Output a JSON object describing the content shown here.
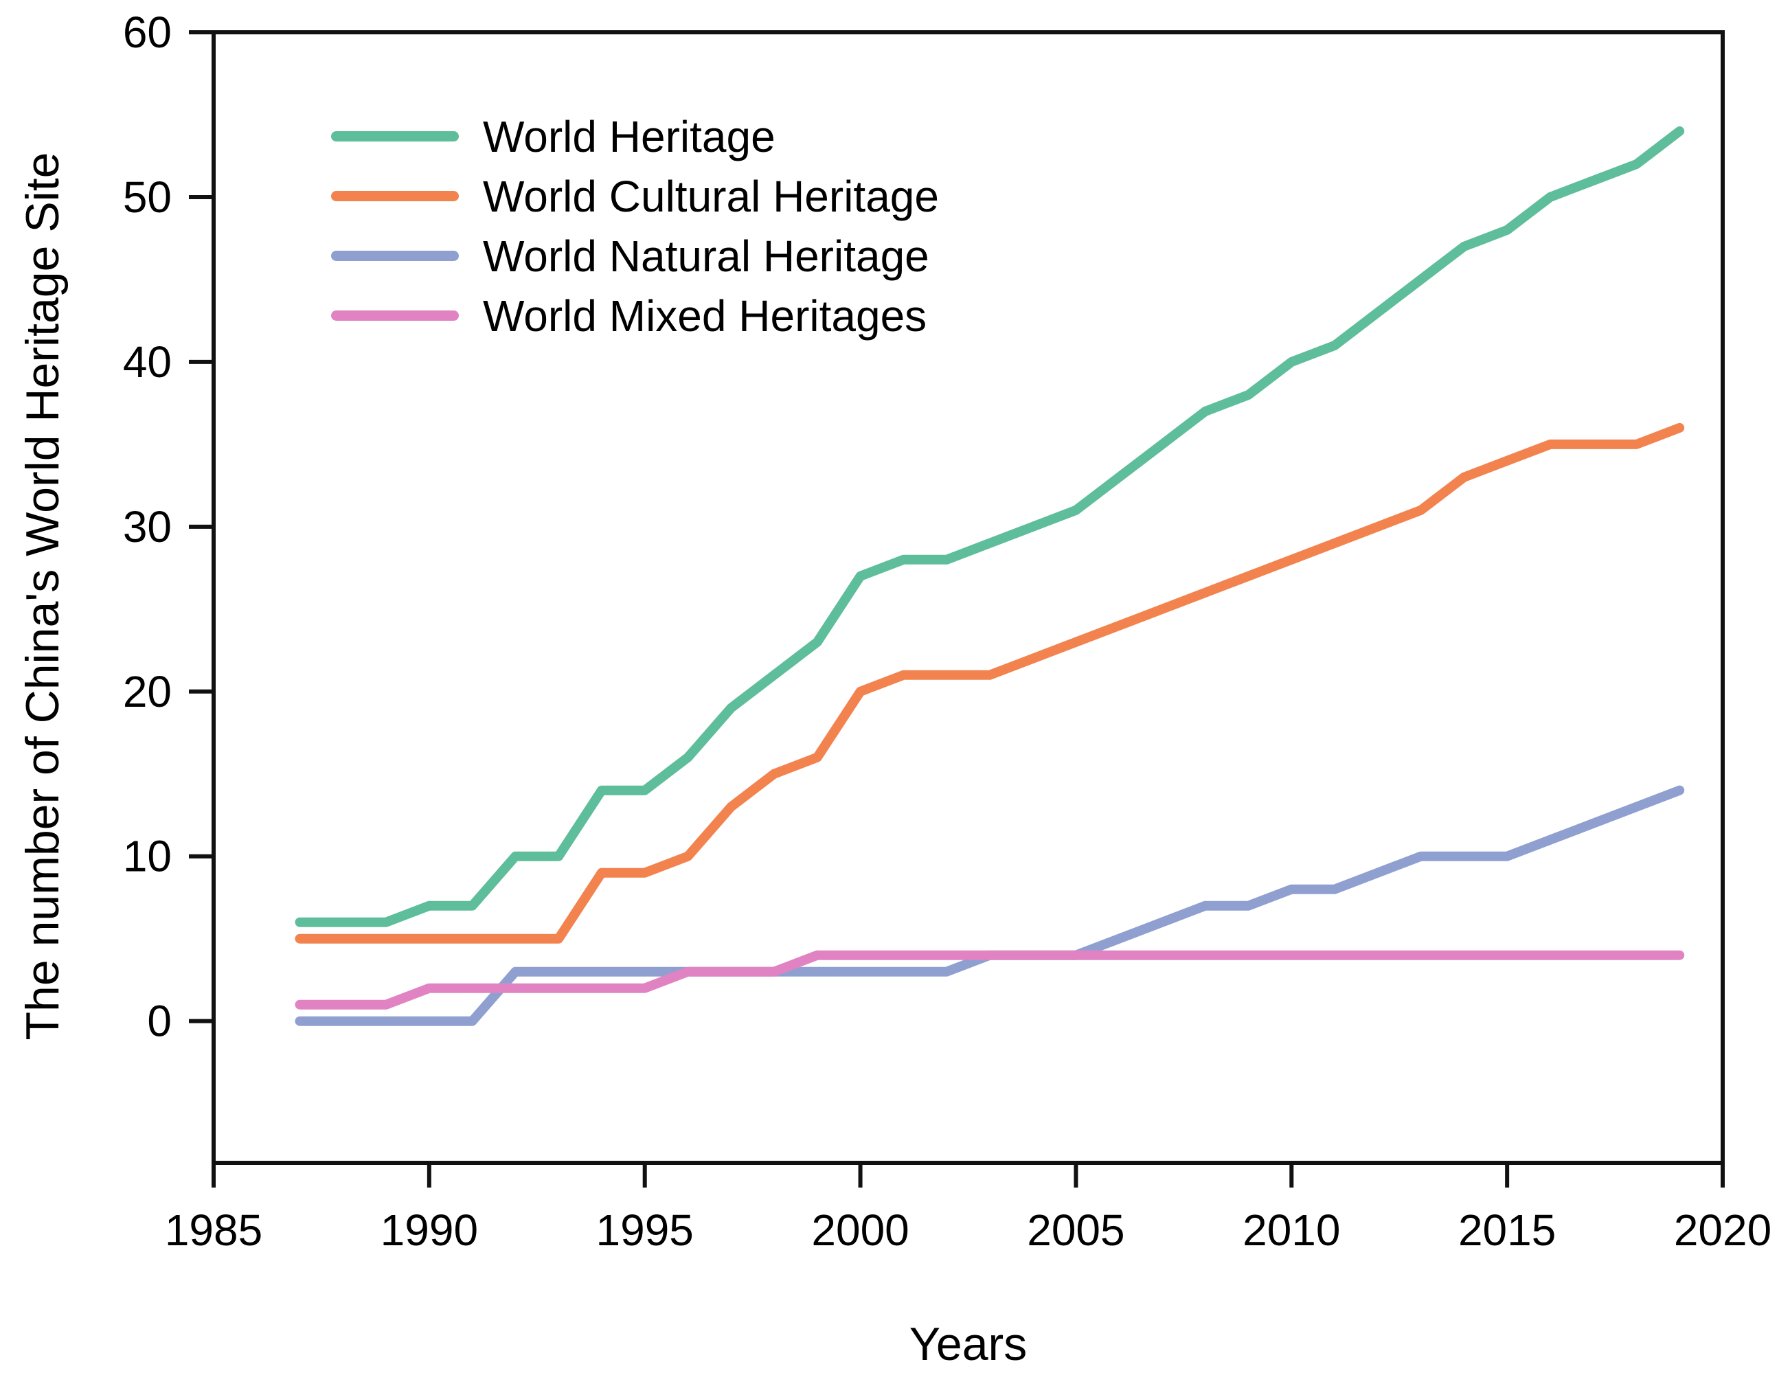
{
  "chart_data": {
    "type": "line",
    "title": "",
    "xlabel": "Years",
    "ylabel": "The number of China's World Heritage Site",
    "xlim": [
      1985,
      2020
    ],
    "ylim": [
      -8.6,
      60
    ],
    "xticks": [
      1985,
      1990,
      1995,
      2000,
      2005,
      2010,
      2015,
      2020
    ],
    "yticks": [
      0,
      10,
      20,
      30,
      40,
      50,
      60
    ],
    "grid": false,
    "legend_position": "upper-left",
    "axis_color": "#111111",
    "x": [
      1987,
      1988,
      1989,
      1990,
      1991,
      1992,
      1993,
      1994,
      1995,
      1996,
      1997,
      1998,
      1999,
      2000,
      2001,
      2002,
      2003,
      2004,
      2005,
      2006,
      2007,
      2008,
      2009,
      2010,
      2011,
      2012,
      2013,
      2014,
      2015,
      2016,
      2017,
      2018,
      2019
    ],
    "series": [
      {
        "name": "World Heritage",
        "color": "#5EBD9B",
        "values": [
          6,
          6,
          6,
          7,
          7,
          10,
          10,
          14,
          14,
          16,
          19,
          21,
          23,
          27,
          28,
          28,
          29,
          30,
          31,
          33,
          35,
          37,
          38,
          40,
          41,
          43,
          45,
          47,
          48,
          50,
          51,
          52,
          54
        ]
      },
      {
        "name": "World Cultural Heritage",
        "color": "#F3834E",
        "values": [
          5,
          5,
          5,
          5,
          5,
          5,
          5,
          9,
          9,
          10,
          13,
          15,
          16,
          20,
          21,
          21,
          21,
          22,
          23,
          24,
          25,
          26,
          27,
          28,
          29,
          30,
          31,
          33,
          34,
          35,
          35,
          35,
          36
        ]
      },
      {
        "name": "World Natural Heritage",
        "color": "#8FA0D0",
        "values": [
          0,
          0,
          0,
          0,
          0,
          3,
          3,
          3,
          3,
          3,
          3,
          3,
          3,
          3,
          3,
          3,
          4,
          4,
          4,
          5,
          6,
          7,
          7,
          8,
          8,
          9,
          10,
          10,
          10,
          11,
          12,
          13,
          14
        ]
      },
      {
        "name": "World Mixed Heritages",
        "color": "#E183C3",
        "values": [
          1,
          1,
          1,
          2,
          2,
          2,
          2,
          2,
          2,
          3,
          3,
          3,
          4,
          4,
          4,
          4,
          4,
          4,
          4,
          4,
          4,
          4,
          4,
          4,
          4,
          4,
          4,
          4,
          4,
          4,
          4,
          4,
          4
        ]
      }
    ]
  }
}
